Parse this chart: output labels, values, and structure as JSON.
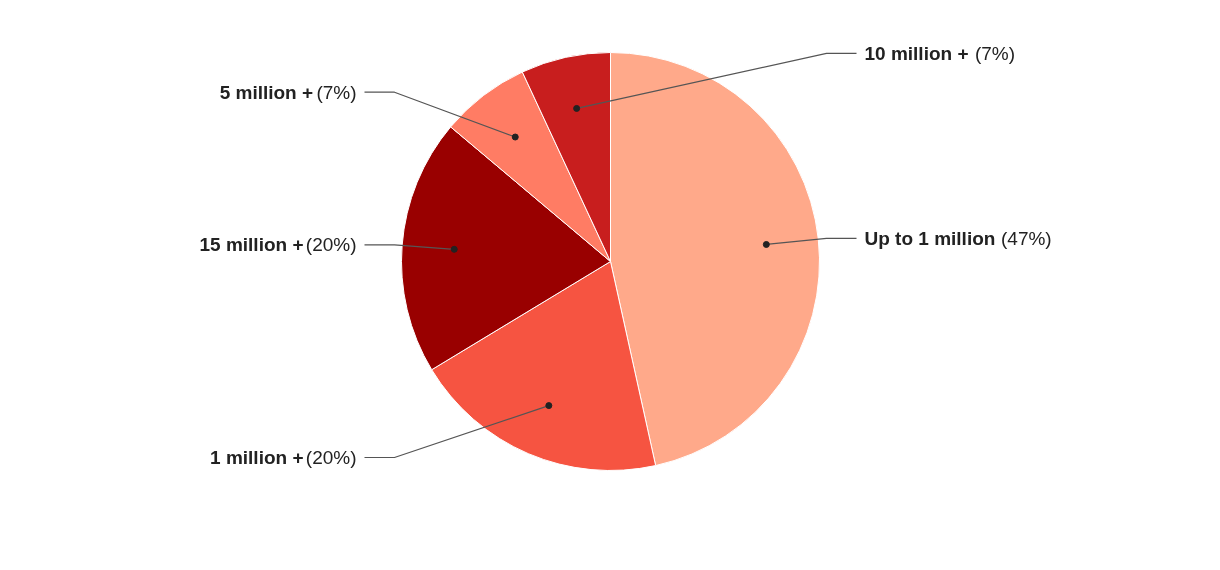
{
  "chart_data": {
    "type": "pie",
    "categories": [
      "Up to 1 million",
      "1 million +",
      "15 million +",
      "5 million +",
      "10 million +"
    ],
    "values": [
      47,
      20,
      20,
      7,
      7
    ],
    "value_labels": [
      "(47%)",
      "(20%)",
      "(20%)",
      "(7%)",
      "(7%)"
    ],
    "colors": [
      "#ffa98a",
      "#f65441",
      "#990000",
      "#ff7c64",
      "#c81e1e"
    ]
  }
}
